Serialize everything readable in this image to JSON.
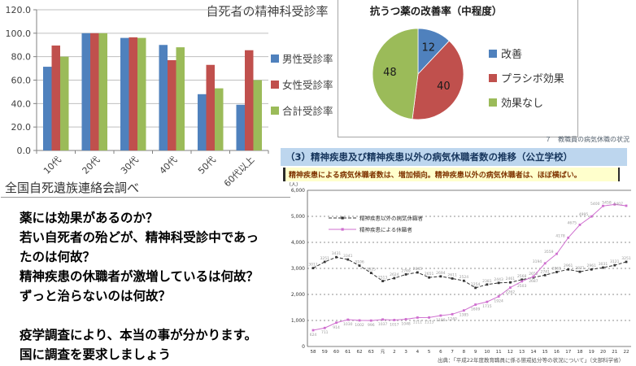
{
  "colors": {
    "series_blue": "#4f81bd",
    "series_red": "#c0504d",
    "series_green": "#9bbb59",
    "line_black": "#333333",
    "line_pink": "#cf6fcf",
    "header_bg": "#bdd6ee",
    "callout_bg": "#ffffcc"
  },
  "chart_data": [
    {
      "type": "bar",
      "title": "自死者の精神科受診率",
      "source": "全国自死遺族連絡会調べ",
      "categories": [
        "10代",
        "20代",
        "30代",
        "40代",
        "50代",
        "60代以上"
      ],
      "series": [
        {
          "name": "男性受診率",
          "color": "#4f81bd",
          "values": [
            71.4,
            100,
            96,
            90,
            48,
            39
          ]
        },
        {
          "name": "女性受診率",
          "color": "#c0504d",
          "values": [
            89.5,
            100,
            96.5,
            77,
            73,
            85.5
          ]
        },
        {
          "name": "合計受診率",
          "color": "#9bbb59",
          "values": [
            80,
            100,
            96,
            88,
            53,
            60
          ]
        }
      ],
      "ylim": [
        0,
        120
      ],
      "yticks": [
        "0.0",
        "20.0",
        "40.0",
        "60.0",
        "80.0",
        "100.0",
        "120.0"
      ],
      "grid": true,
      "legend_position": "right"
    },
    {
      "type": "pie",
      "title": "抗うつ薬の改善率（中程度）",
      "labels": [
        "改善",
        "プラシボ効果",
        "効果なし"
      ],
      "values": [
        12,
        40,
        48
      ],
      "colors": [
        "#4f81bd",
        "#c0504d",
        "#9bbb59"
      ],
      "legend_position": "right"
    },
    {
      "type": "line",
      "section_note": "７　教職員の病気休職の状況",
      "header": "（3）精神疾患及び精神疾患以外の病気休職者数の推移（公立学校）",
      "callout": "精神疾患による病気休職者数は、増加傾向。精神疾患以外の病気休職者は、ほぼ横ばい。",
      "unit": "（人）",
      "source": "出典：「平成22年度教育職員に係る懲戒処分等の状況について」（文部科学省）",
      "x": [
        "58",
        "59",
        "60",
        "61",
        "62",
        "63",
        "元",
        "2",
        "3",
        "4",
        "5",
        "6",
        "7",
        "8",
        "9",
        "10",
        "11",
        "12",
        "13",
        "14",
        "15",
        "16",
        "17",
        "18",
        "19",
        "20",
        "21",
        "22"
      ],
      "series": [
        {
          "name": "精神疾患以外の病気休職者",
          "style": "dashed",
          "color": "#333333",
          "values": [
            3011,
            3251,
            3431,
            3341,
            3106,
            2825,
            2513,
            2624,
            2769,
            2845,
            2651,
            2694,
            2611,
            2524,
            2254,
            2381,
            2443,
            2461,
            2568,
            2652,
            2741,
            2861,
            2961,
            2871,
            2961,
            3031,
            3121,
            3251
          ]
        },
        {
          "name": "精神疾患による休職者",
          "style": "solid",
          "color": "#cf6fcf",
          "values": [
            624,
            711,
            914,
            1030,
            1002,
            996,
            1037,
            1017,
            1048,
            1111,
            1113,
            1188,
            1240,
            1385,
            1609,
            1715,
            1924,
            2262,
            2503,
            2687,
            3194,
            3559,
            4178,
            4675,
            4995,
            5400,
            5458,
            5407
          ]
        }
      ],
      "ylim": [
        0,
        6000
      ],
      "yticks": [
        "0",
        "1,000",
        "2,000",
        "3,000",
        "4,000",
        "5,000",
        "6,000"
      ],
      "grid": true,
      "legend_position": "inside-top-left"
    }
  ],
  "message": {
    "lines": [
      "薬には効果があるのか？",
      "若い自死者の殆どが、精神科受診中であっ",
      "たのは何故？",
      "精神疾患の休職者が激増しているは何故？",
      "ずっと治らないのは何故？",
      "",
      "疫学調査により、本当の事が分かります。",
      "国に調査を要求しましょう"
    ]
  }
}
